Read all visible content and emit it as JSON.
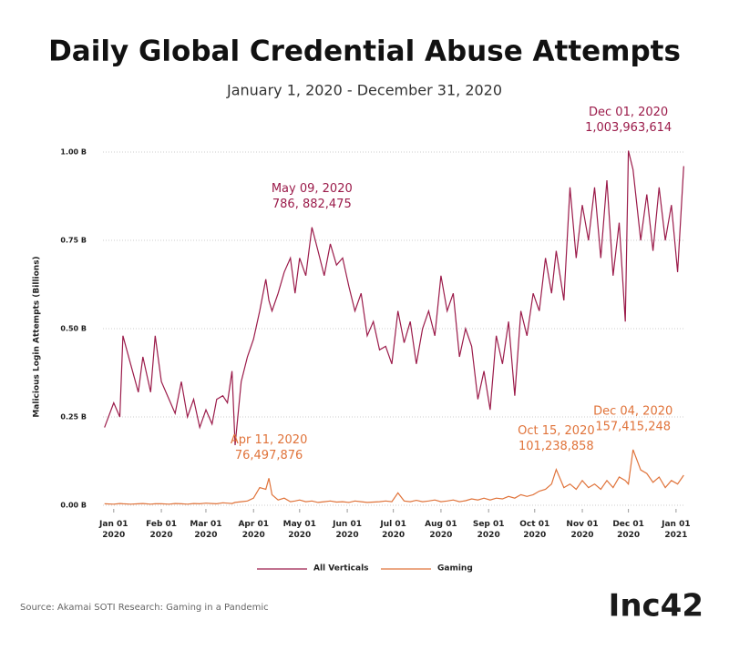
{
  "chart_data": {
    "type": "line",
    "title": "Daily Global Credential Abuse Attempts",
    "subtitle": "January 1, 2020 - December 31, 2020",
    "ylabel": "Malicious Login Attempts (Billions)",
    "x": [
      "2019-12-26",
      "2020-01-01",
      "2020-01-05",
      "2020-01-07",
      "2020-01-12",
      "2020-01-17",
      "2020-01-20",
      "2020-01-25",
      "2020-01-28",
      "2020-02-01",
      "2020-02-06",
      "2020-02-10",
      "2020-02-14",
      "2020-02-18",
      "2020-02-22",
      "2020-02-26",
      "2020-03-01",
      "2020-03-05",
      "2020-03-08",
      "2020-03-12",
      "2020-03-15",
      "2020-03-18",
      "2020-03-20",
      "2020-03-24",
      "2020-03-28",
      "2020-04-01",
      "2020-04-05",
      "2020-04-09",
      "2020-04-11",
      "2020-04-13",
      "2020-04-17",
      "2020-04-21",
      "2020-04-25",
      "2020-04-28",
      "2020-05-01",
      "2020-05-05",
      "2020-05-09",
      "2020-05-13",
      "2020-05-17",
      "2020-05-21",
      "2020-05-25",
      "2020-05-29",
      "2020-06-02",
      "2020-06-06",
      "2020-06-10",
      "2020-06-14",
      "2020-06-18",
      "2020-06-22",
      "2020-06-26",
      "2020-06-30",
      "2020-07-04",
      "2020-07-08",
      "2020-07-12",
      "2020-07-16",
      "2020-07-20",
      "2020-07-24",
      "2020-07-28",
      "2020-08-01",
      "2020-08-05",
      "2020-08-09",
      "2020-08-13",
      "2020-08-17",
      "2020-08-21",
      "2020-08-25",
      "2020-08-29",
      "2020-09-02",
      "2020-09-06",
      "2020-09-10",
      "2020-09-14",
      "2020-09-18",
      "2020-09-22",
      "2020-09-26",
      "2020-09-30",
      "2020-10-04",
      "2020-10-08",
      "2020-10-12",
      "2020-10-15",
      "2020-10-20",
      "2020-10-24",
      "2020-10-28",
      "2020-11-01",
      "2020-11-05",
      "2020-11-09",
      "2020-11-13",
      "2020-11-17",
      "2020-11-21",
      "2020-11-25",
      "2020-11-29",
      "2020-12-01",
      "2020-12-04",
      "2020-12-09",
      "2020-12-13",
      "2020-12-17",
      "2020-12-21",
      "2020-12-25",
      "2020-12-29",
      "2021-01-02",
      "2021-01-06"
    ],
    "series": [
      {
        "name": "All Verticals",
        "color": "#9b1b4a",
        "values": [
          0.22,
          0.29,
          0.25,
          0.48,
          0.4,
          0.32,
          0.42,
          0.32,
          0.48,
          0.35,
          0.3,
          0.26,
          0.35,
          0.25,
          0.3,
          0.22,
          0.27,
          0.23,
          0.3,
          0.31,
          0.29,
          0.38,
          0.17,
          0.35,
          0.42,
          0.47,
          0.55,
          0.64,
          0.58,
          0.55,
          0.6,
          0.66,
          0.7,
          0.6,
          0.7,
          0.65,
          0.786882475,
          0.72,
          0.65,
          0.74,
          0.68,
          0.7,
          0.62,
          0.55,
          0.6,
          0.48,
          0.52,
          0.44,
          0.45,
          0.4,
          0.55,
          0.46,
          0.52,
          0.4,
          0.5,
          0.55,
          0.48,
          0.65,
          0.55,
          0.6,
          0.42,
          0.5,
          0.45,
          0.3,
          0.38,
          0.27,
          0.48,
          0.4,
          0.52,
          0.31,
          0.55,
          0.48,
          0.6,
          0.55,
          0.7,
          0.6,
          0.72,
          0.58,
          0.9,
          0.7,
          0.85,
          0.75,
          0.9,
          0.7,
          0.92,
          0.65,
          0.8,
          0.52,
          1.003963614,
          0.95,
          0.75,
          0.88,
          0.72,
          0.9,
          0.75,
          0.85,
          0.66,
          0.96
        ]
      },
      {
        "name": "Gaming",
        "color": "#e0733a",
        "values": [
          0.004,
          0.003,
          0.005,
          0.004,
          0.003,
          0.004,
          0.005,
          0.003,
          0.004,
          0.004,
          0.003,
          0.005,
          0.004,
          0.003,
          0.005,
          0.004,
          0.006,
          0.005,
          0.004,
          0.007,
          0.006,
          0.005,
          0.008,
          0.01,
          0.012,
          0.02,
          0.05,
          0.045,
          0.076497876,
          0.03,
          0.015,
          0.02,
          0.01,
          0.012,
          0.015,
          0.01,
          0.012,
          0.008,
          0.01,
          0.012,
          0.009,
          0.01,
          0.008,
          0.012,
          0.01,
          0.008,
          0.009,
          0.01,
          0.012,
          0.01,
          0.035,
          0.012,
          0.01,
          0.014,
          0.01,
          0.012,
          0.015,
          0.01,
          0.012,
          0.015,
          0.01,
          0.013,
          0.018,
          0.015,
          0.02,
          0.015,
          0.02,
          0.018,
          0.025,
          0.02,
          0.03,
          0.025,
          0.03,
          0.04,
          0.045,
          0.06,
          0.101238858,
          0.05,
          0.06,
          0.045,
          0.07,
          0.05,
          0.06,
          0.045,
          0.07,
          0.05,
          0.08,
          0.07,
          0.06,
          0.157415248,
          0.1,
          0.09,
          0.065,
          0.08,
          0.05,
          0.07,
          0.06,
          0.085
        ]
      }
    ],
    "xlim": [
      "2019-12-25",
      "2021-01-07"
    ],
    "xticks": [
      {
        "value": "2020-01-01",
        "label": "Jan 01\n2020"
      },
      {
        "value": "2020-02-01",
        "label": "Feb 01\n2020"
      },
      {
        "value": "2020-03-01",
        "label": "Mar 01\n2020"
      },
      {
        "value": "2020-04-01",
        "label": "Apr 01\n2020"
      },
      {
        "value": "2020-05-01",
        "label": "May 01\n2020"
      },
      {
        "value": "2020-06-01",
        "label": "Jun 01\n2020"
      },
      {
        "value": "2020-07-01",
        "label": "Jul 01\n2020"
      },
      {
        "value": "2020-08-01",
        "label": "Aug 01\n2020"
      },
      {
        "value": "2020-09-01",
        "label": "Sep 01\n2020"
      },
      {
        "value": "2020-10-01",
        "label": "Oct 01\n2020"
      },
      {
        "value": "2020-11-01",
        "label": "Nov 01\n2020"
      },
      {
        "value": "2020-12-01",
        "label": "Dec 01\n2020"
      },
      {
        "value": "2021-01-01",
        "label": "Jan 01\n2021"
      }
    ],
    "ylim": [
      0,
      1.0
    ],
    "yticks": [
      {
        "value": 0,
        "label": "0.00 B"
      },
      {
        "value": 0.25,
        "label": "0.25 B"
      },
      {
        "value": 0.5,
        "label": "0.50 B"
      },
      {
        "value": 0.75,
        "label": "0.75 B"
      },
      {
        "value": 1.0,
        "label": "1.00 B"
      }
    ],
    "grid": true,
    "legend": "bottom",
    "annotations": [
      {
        "label": "May 09, 2020",
        "text": "786, 882,475",
        "x": "2020-05-09",
        "y": 0.786882475,
        "color": "#9b1b4a"
      },
      {
        "label": "Dec 01, 2020",
        "text": "1,003,963,614",
        "x": "2020-12-01",
        "y": 1.003963614,
        "color": "#9b1b4a"
      },
      {
        "label": "Apr 11, 2020",
        "text": "76,497,876",
        "x": "2020-04-11",
        "y": 0.076497876,
        "color": "#e0733a"
      },
      {
        "label": "Oct 15, 2020",
        "text": "101,238,858",
        "x": "2020-10-15",
        "y": 0.101238858,
        "color": "#e0733a"
      },
      {
        "label": "Dec 04, 2020",
        "text": "157,415,248",
        "x": "2020-12-04",
        "y": 0.157415248,
        "color": "#e0733a"
      }
    ],
    "source": "Source: Akamai SOTI Research: Gaming in a Pandemic",
    "logo": "Inc42"
  }
}
